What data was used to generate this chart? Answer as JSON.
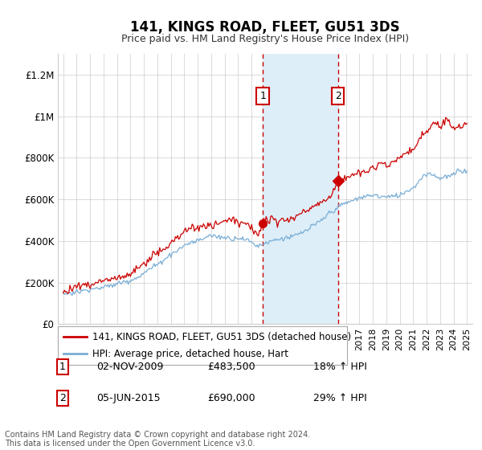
{
  "title": "141, KINGS ROAD, FLEET, GU51 3DS",
  "subtitle": "Price paid vs. HM Land Registry's House Price Index (HPI)",
  "footnote": "Contains HM Land Registry data © Crown copyright and database right 2024.\nThis data is licensed under the Open Government Licence v3.0.",
  "legend_line1": "141, KINGS ROAD, FLEET, GU51 3DS (detached house)",
  "legend_line2": "HPI: Average price, detached house, Hart",
  "sale1_label": "1",
  "sale1_date": "02-NOV-2009",
  "sale1_price": "£483,500",
  "sale1_hpi": "18% ↑ HPI",
  "sale2_label": "2",
  "sale2_date": "05-JUN-2015",
  "sale2_price": "£690,000",
  "sale2_hpi": "29% ↑ HPI",
  "red_color": "#cc0000",
  "blue_color": "#7aaed6",
  "shade_color": "#ddeef8",
  "background": "#ffffff",
  "grid_color": "#cccccc",
  "ylim": [
    0,
    1300000
  ],
  "yticks": [
    0,
    200000,
    400000,
    600000,
    800000,
    1000000,
    1200000
  ],
  "ytick_labels": [
    "£0",
    "£200K",
    "£400K",
    "£600K",
    "£800K",
    "£1M",
    "£1.2M"
  ],
  "sale1_x": 2009.83,
  "sale2_x": 2015.42,
  "sale1_y": 483500,
  "sale2_y": 690000,
  "xlim_left": 1994.6,
  "xlim_right": 2025.4
}
